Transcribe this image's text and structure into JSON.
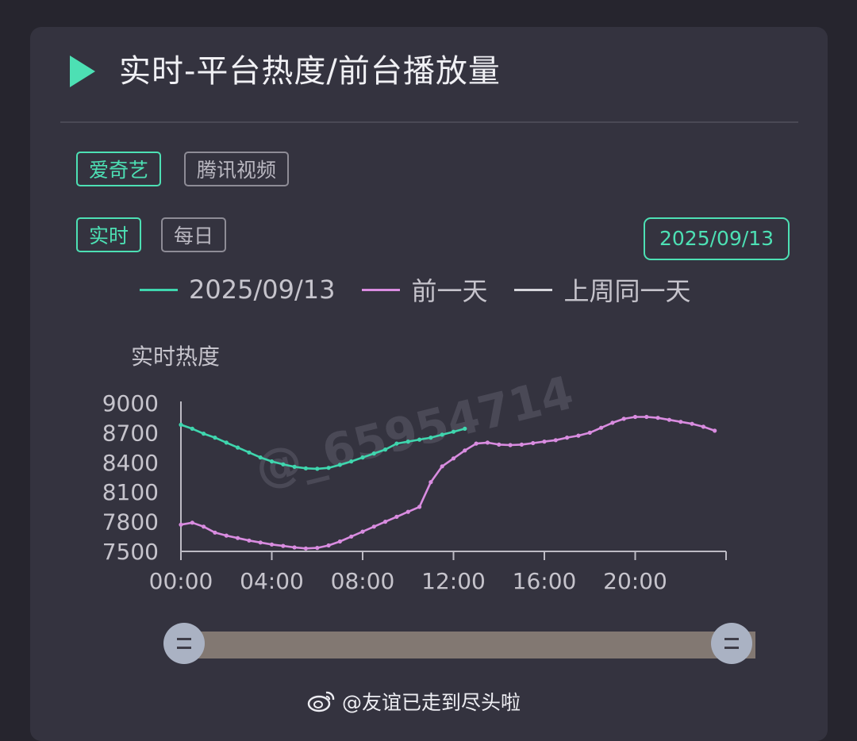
{
  "header": {
    "title": "实时-平台热度/前台播放量"
  },
  "platform_tabs": [
    {
      "label": "爱奇艺",
      "active": true
    },
    {
      "label": "腾讯视频",
      "active": false
    }
  ],
  "mode_tabs": [
    {
      "label": "实时",
      "active": true
    },
    {
      "label": "每日",
      "active": false
    }
  ],
  "date_picker": {
    "label": "2025/09/13"
  },
  "watermark": {
    "text": "@_65954714"
  },
  "footer": {
    "text": "@友谊已走到尽头啦",
    "icon": "weibo-icon"
  },
  "colors": {
    "accent": "#4de0b4",
    "series_today": "#3fd6ae",
    "series_yesterday": "#d98ce0",
    "series_last_week": "#d6d6dc"
  },
  "chart_data": {
    "type": "line",
    "title": "",
    "ylabel": "实时热度",
    "xlabel": "",
    "ylim": [
      7500,
      9000
    ],
    "xlim": [
      0,
      24
    ],
    "y_ticks": [
      9000,
      8700,
      8400,
      8100,
      7800,
      7500
    ],
    "x_ticks": [
      "00:00",
      "04:00",
      "08:00",
      "12:00",
      "16:00",
      "20:00"
    ],
    "legend_placement": "top",
    "grid": false,
    "series": [
      {
        "name": "2025/09/13",
        "color": "#3fd6ae",
        "x": [
          0,
          0.5,
          1,
          1.5,
          2,
          2.5,
          3,
          3.5,
          4,
          4.5,
          5,
          5.5,
          6,
          6.5,
          7,
          7.5,
          8,
          8.5,
          9,
          9.5,
          10,
          10.5,
          11,
          11.5,
          12,
          12.5
        ],
        "values": [
          8780,
          8740,
          8690,
          8650,
          8600,
          8550,
          8500,
          8450,
          8410,
          8380,
          8355,
          8340,
          8335,
          8345,
          8375,
          8410,
          8450,
          8490,
          8530,
          8590,
          8610,
          8630,
          8650,
          8680,
          8710,
          8740
        ]
      },
      {
        "name": "前一天",
        "color": "#d98ce0",
        "x": [
          0,
          0.5,
          1,
          1.5,
          2,
          2.5,
          3,
          3.5,
          4,
          4.5,
          5,
          5.5,
          6,
          6.5,
          7,
          7.5,
          8,
          8.5,
          9,
          9.5,
          10,
          10.5,
          11,
          11.5,
          12,
          12.5,
          13,
          13.5,
          14,
          14.5,
          15,
          15.5,
          16,
          16.5,
          17,
          17.5,
          18,
          18.5,
          19,
          19.5,
          20,
          20.5,
          21,
          21.5,
          22,
          22.5,
          23,
          23.5
        ],
        "values": [
          7770,
          7790,
          7750,
          7690,
          7660,
          7635,
          7610,
          7590,
          7570,
          7555,
          7540,
          7530,
          7535,
          7560,
          7600,
          7650,
          7700,
          7750,
          7800,
          7850,
          7900,
          7950,
          8200,
          8360,
          8440,
          8520,
          8590,
          8600,
          8580,
          8575,
          8580,
          8595,
          8610,
          8625,
          8650,
          8670,
          8700,
          8750,
          8800,
          8840,
          8860,
          8860,
          8850,
          8830,
          8810,
          8790,
          8760,
          8720
        ]
      },
      {
        "name": "上周同一天",
        "color": "#d6d6dc",
        "x": [],
        "values": []
      }
    ]
  }
}
